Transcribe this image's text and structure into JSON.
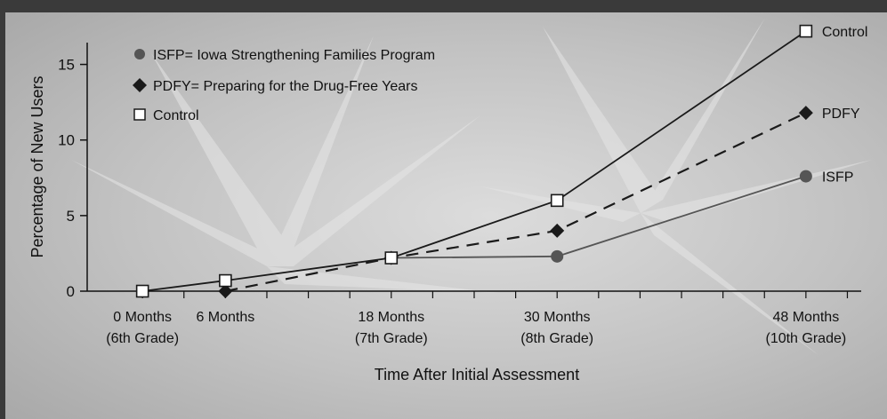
{
  "chart_data": {
    "type": "line",
    "title": "",
    "xlabel": "Time After Initial Assessment",
    "ylabel": "Percentage of New Users",
    "ylim": [
      0,
      17.5
    ],
    "xlim": [
      -4,
      52
    ],
    "yticks": [
      0,
      5,
      10,
      15
    ],
    "xticks": [
      {
        "value": 0,
        "line1": "0 Months",
        "line2": "(6th Grade)"
      },
      {
        "value": 6,
        "line1": "6 Months",
        "line2": ""
      },
      {
        "value": 18,
        "line1": "18 Months",
        "line2": "(7th Grade)"
      },
      {
        "value": 30,
        "line1": "30 Months",
        "line2": "(8th Grade)"
      },
      {
        "value": 48,
        "line1": "48 Months",
        "line2": "(10th Grade)"
      }
    ],
    "legend": {
      "placement": "top-left",
      "entries": [
        {
          "series": "ISFP",
          "label": "ISFP= Iowa Strengthening Families Program"
        },
        {
          "series": "PDFY",
          "label": "PDFY= Preparing for the Drug-Free Years"
        },
        {
          "series": "Control",
          "label": "Control"
        }
      ]
    },
    "series": [
      {
        "name": "Control",
        "end_label": "Control",
        "marker": "square",
        "line_style": "solid",
        "color": "#1a1a1a",
        "x": [
          0,
          6,
          18,
          30,
          48
        ],
        "y": [
          0,
          0.7,
          2.2,
          6.0,
          17.2
        ]
      },
      {
        "name": "PDFY",
        "end_label": "PDFY",
        "marker": "diamond",
        "line_style": "dashed",
        "color": "#1a1a1a",
        "x": [
          6,
          18,
          30,
          48
        ],
        "y": [
          0,
          2.2,
          4.0,
          11.8
        ]
      },
      {
        "name": "ISFP",
        "end_label": "ISFP",
        "marker": "circle",
        "line_style": "solid",
        "color": "#555555",
        "x": [
          18,
          30,
          48
        ],
        "y": [
          2.2,
          2.3,
          7.6
        ]
      }
    ]
  }
}
